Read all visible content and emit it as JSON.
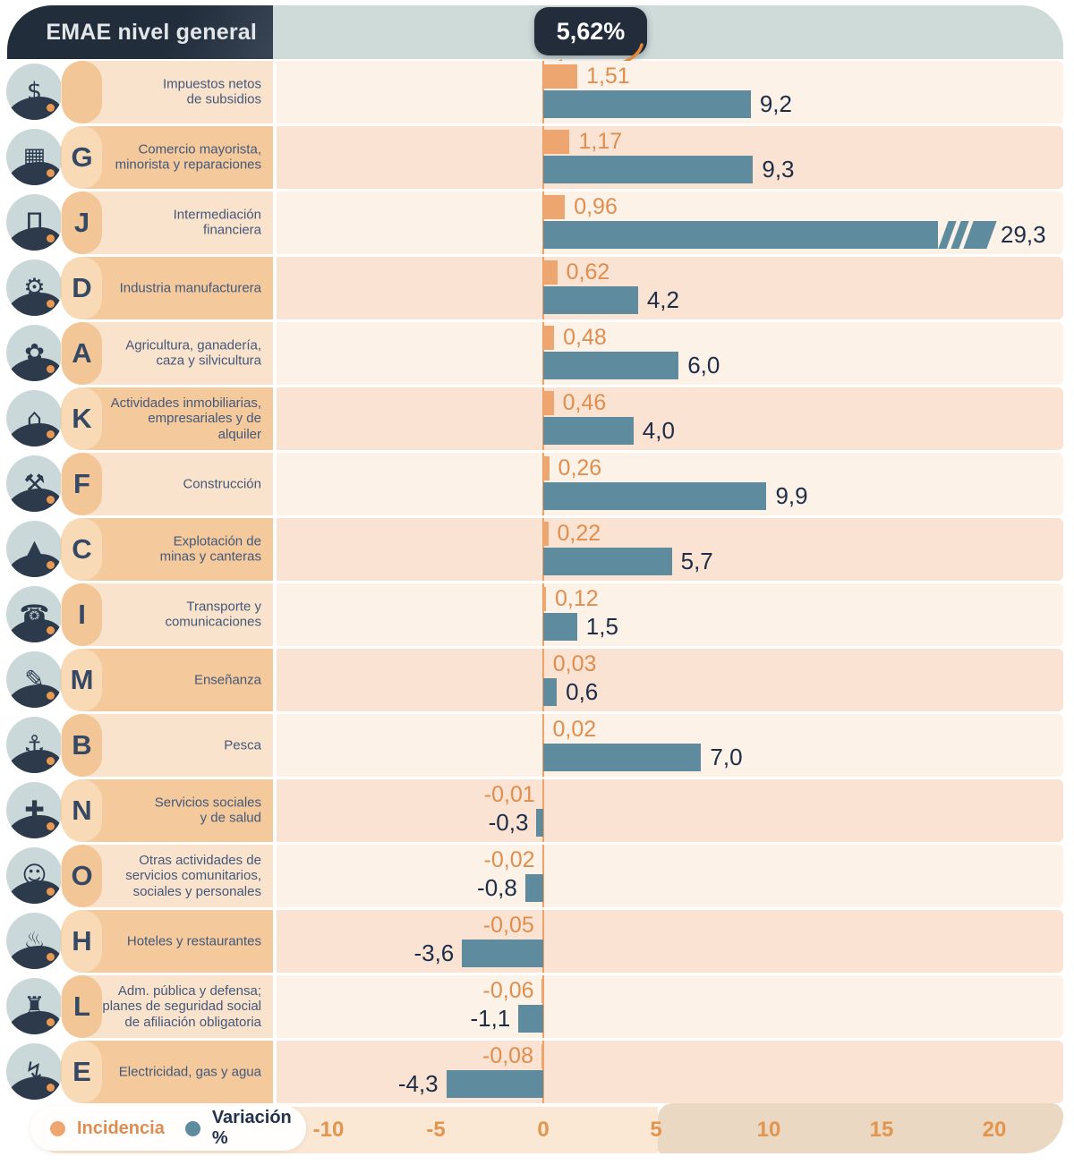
{
  "header": {
    "title": "EMAE nivel general",
    "headline_badge": "5,62%"
  },
  "legend": {
    "incidencia_label": "Incidencia",
    "variacion_label": "Variación %"
  },
  "axis": {
    "ticks": [
      {
        "label": "-10",
        "value": -10
      },
      {
        "label": "-5",
        "value": -5
      },
      {
        "label": "0",
        "value": 0
      },
      {
        "label": "5",
        "value": 5
      },
      {
        "label": "10",
        "value": 10
      },
      {
        "label": "15",
        "value": 15
      },
      {
        "label": "20",
        "value": 20
      }
    ]
  },
  "colors": {
    "incidencia_bar": "#eea671",
    "variacion_bar": "#5e8b9d",
    "incidencia_text": "#df8e4e",
    "variacion_text": "#1d2c47",
    "header_navy": "#222d3c",
    "header_band": "#cfdbd9",
    "zero_line": "#f0a266",
    "tick_text": "#e2954e"
  },
  "chart_data": {
    "type": "bar",
    "title": "EMAE nivel general",
    "headline_value": "5,62%",
    "orientation": "horizontal",
    "xlim": [
      -12,
      23
    ],
    "legend_position": "bottom-left",
    "grid": false,
    "series": [
      {
        "name": "Incidencia",
        "values": [
          1.51,
          1.17,
          0.96,
          0.62,
          0.48,
          0.46,
          0.26,
          0.22,
          0.12,
          0.03,
          0.02,
          -0.01,
          -0.02,
          -0.05,
          -0.06,
          -0.08
        ]
      },
      {
        "name": "Variación %",
        "values": [
          9.2,
          9.3,
          29.3,
          4.2,
          6.0,
          4.0,
          9.9,
          5.7,
          1.5,
          0.6,
          7.0,
          -0.3,
          -0.8,
          -3.6,
          -1.1,
          -4.3
        ]
      }
    ],
    "categories": [
      "Impuestos netos de subsidios",
      "Comercio mayorista, minorista y reparaciones",
      "Intermediación financiera",
      "Industria manufacturera",
      "Agricultura, ganadería, caza y silvicultura",
      "Actividades inmobiliarias, empresariales y de alquiler",
      "Construcción",
      "Explotación de minas y canteras",
      "Transporte y comunicaciones",
      "Enseñanza",
      "Pesca",
      "Servicios sociales y de salud",
      "Otras actividades de servicios comunitarios, sociales y personales",
      "Hoteles y restaurantes",
      "Adm. pública y defensa; planes de seguridad social de afiliación obligatoria",
      "Electricidad, gas y agua"
    ],
    "rows": [
      {
        "code": "",
        "label": "Impuestos netos\nde subsidios",
        "incidencia": 1.51,
        "incidencia_label": "1,51",
        "variacion": 9.2,
        "variacion_label": "9,2",
        "broken": false,
        "icon": "taxes-icon",
        "icon_glyph": "$"
      },
      {
        "code": "G",
        "label": "Comercio mayorista,\nminorista y reparaciones",
        "incidencia": 1.17,
        "incidencia_label": "1,17",
        "variacion": 9.3,
        "variacion_label": "9,3",
        "broken": false,
        "icon": "commerce-icon",
        "icon_glyph": "▦"
      },
      {
        "code": "J",
        "label": "Intermediación\nfinanciera",
        "incidencia": 0.96,
        "incidencia_label": "0,96",
        "variacion": 29.3,
        "variacion_label": "29,3",
        "broken": true,
        "icon": "bank-icon",
        "icon_glyph": "Π"
      },
      {
        "code": "D",
        "label": "Industria manufacturera",
        "incidencia": 0.62,
        "incidencia_label": "0,62",
        "variacion": 4.2,
        "variacion_label": "4,2",
        "broken": false,
        "icon": "industry-icon",
        "icon_glyph": "⚙"
      },
      {
        "code": "A",
        "label": "Agricultura, ganadería,\ncaza y silvicultura",
        "incidencia": 0.48,
        "incidencia_label": "0,48",
        "variacion": 6.0,
        "variacion_label": "6,0",
        "broken": false,
        "icon": "agriculture-icon",
        "icon_glyph": "✿"
      },
      {
        "code": "K",
        "label": "Actividades inmobiliarias,\nempresariales y de alquiler",
        "incidencia": 0.46,
        "incidencia_label": "0,46",
        "variacion": 4.0,
        "variacion_label": "4,0",
        "broken": false,
        "icon": "realestate-icon",
        "icon_glyph": "⌂"
      },
      {
        "code": "F",
        "label": "Construcción",
        "incidencia": 0.26,
        "incidencia_label": "0,26",
        "variacion": 9.9,
        "variacion_label": "9,9",
        "broken": false,
        "icon": "construction-icon",
        "icon_glyph": "⚒"
      },
      {
        "code": "C",
        "label": "Explotación de\nminas y canteras",
        "incidencia": 0.22,
        "incidencia_label": "0,22",
        "variacion": 5.7,
        "variacion_label": "5,7",
        "broken": false,
        "icon": "mining-icon",
        "icon_glyph": "▲"
      },
      {
        "code": "I",
        "label": "Transporte y\ncomunicaciones",
        "incidencia": 0.12,
        "incidencia_label": "0,12",
        "variacion": 1.5,
        "variacion_label": "1,5",
        "broken": false,
        "icon": "transport-icon",
        "icon_glyph": "☎"
      },
      {
        "code": "M",
        "label": "Enseñanza",
        "incidencia": 0.03,
        "incidencia_label": "0,03",
        "variacion": 0.6,
        "variacion_label": "0,6",
        "broken": false,
        "icon": "education-icon",
        "icon_glyph": "✎"
      },
      {
        "code": "B",
        "label": "Pesca",
        "incidencia": 0.02,
        "incidencia_label": "0,02",
        "variacion": 7.0,
        "variacion_label": "7,0",
        "broken": false,
        "icon": "fishing-icon",
        "icon_glyph": "⚓"
      },
      {
        "code": "N",
        "label": "Servicios sociales\ny de salud",
        "incidencia": -0.01,
        "incidencia_label": "-0,01",
        "variacion": -0.3,
        "variacion_label": "-0,3",
        "broken": false,
        "icon": "health-icon",
        "icon_glyph": "✚"
      },
      {
        "code": "O",
        "label": "Otras actividades de\nservicios comunitarios,\nsociales y personales",
        "incidencia": -0.02,
        "incidencia_label": "-0,02",
        "variacion": -0.8,
        "variacion_label": "-0,8",
        "broken": false,
        "icon": "community-icon",
        "icon_glyph": "☺"
      },
      {
        "code": "H",
        "label": "Hoteles y restaurantes",
        "incidencia": -0.05,
        "incidencia_label": "-0,05",
        "variacion": -3.6,
        "variacion_label": "-3,6",
        "broken": false,
        "icon": "hotel-icon",
        "icon_glyph": "♨"
      },
      {
        "code": "L",
        "label": "Adm. pública y defensa;\nplanes de seguridad social\nde afiliación obligatoria",
        "incidencia": -0.06,
        "incidencia_label": "-0,06",
        "variacion": -1.1,
        "variacion_label": "-1,1",
        "broken": false,
        "icon": "government-icon",
        "icon_glyph": "♜"
      },
      {
        "code": "E",
        "label": "Electricidad, gas y agua",
        "incidencia": -0.08,
        "incidencia_label": "-0,08",
        "variacion": -4.3,
        "variacion_label": "-4,3",
        "broken": false,
        "icon": "utilities-icon",
        "icon_glyph": "↯"
      }
    ]
  }
}
